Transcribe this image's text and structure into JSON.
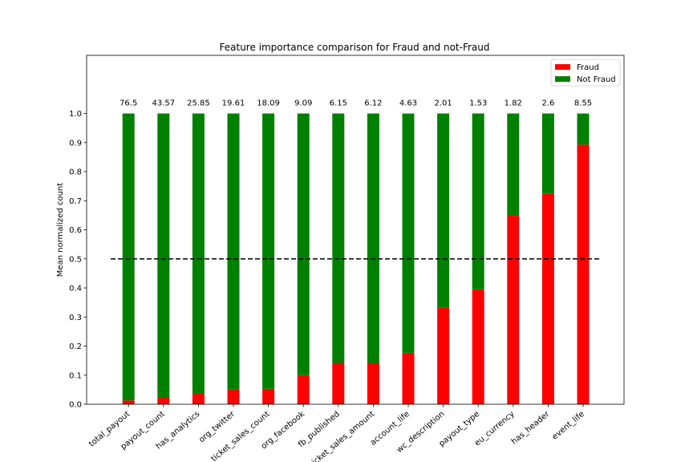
{
  "chart_data": {
    "type": "bar",
    "stacked": true,
    "title": "Feature importance comparison for Fraud and not-Fraud",
    "xlabel": "",
    "ylabel": "Mean normalized count",
    "ylim": [
      0,
      1.2
    ],
    "yticks": [
      "0.0",
      "0.1",
      "0.2",
      "0.3",
      "0.4",
      "0.5",
      "0.6",
      "0.7",
      "0.8",
      "0.9",
      "1.0"
    ],
    "categories": [
      "total_payout",
      "payout_count",
      "has_analytics",
      "org_twitter",
      "ticket_sales_count",
      "org_facebook",
      "fb_published",
      "ticket_sales_amount",
      "account_life",
      "wc_description",
      "payout_type",
      "eu_currency",
      "has_header",
      "event_life"
    ],
    "series": [
      {
        "name": "Fraud",
        "color": "#ff0000",
        "values": [
          0.013,
          0.022,
          0.036,
          0.05,
          0.053,
          0.1,
          0.142,
          0.142,
          0.177,
          0.332,
          0.395,
          0.648,
          0.725,
          0.893
        ]
      },
      {
        "name": "Not Fraud",
        "color": "#008000",
        "values": [
          0.987,
          0.978,
          0.964,
          0.95,
          0.947,
          0.9,
          0.858,
          0.858,
          0.823,
          0.668,
          0.605,
          0.352,
          0.275,
          0.107
        ]
      }
    ],
    "annotations": [
      "76.5",
      "43.57",
      "25.85",
      "19.61",
      "18.09",
      "9.09",
      "6.15",
      "6.12",
      "4.63",
      "2.01",
      "1.53",
      "1.82",
      "2.6",
      "8.55"
    ],
    "reference_line": {
      "y": 0.5,
      "style": "dashed",
      "color": "#000000"
    },
    "legend": {
      "position": "top-right",
      "entries": [
        "Fraud",
        "Not Fraud"
      ]
    }
  }
}
